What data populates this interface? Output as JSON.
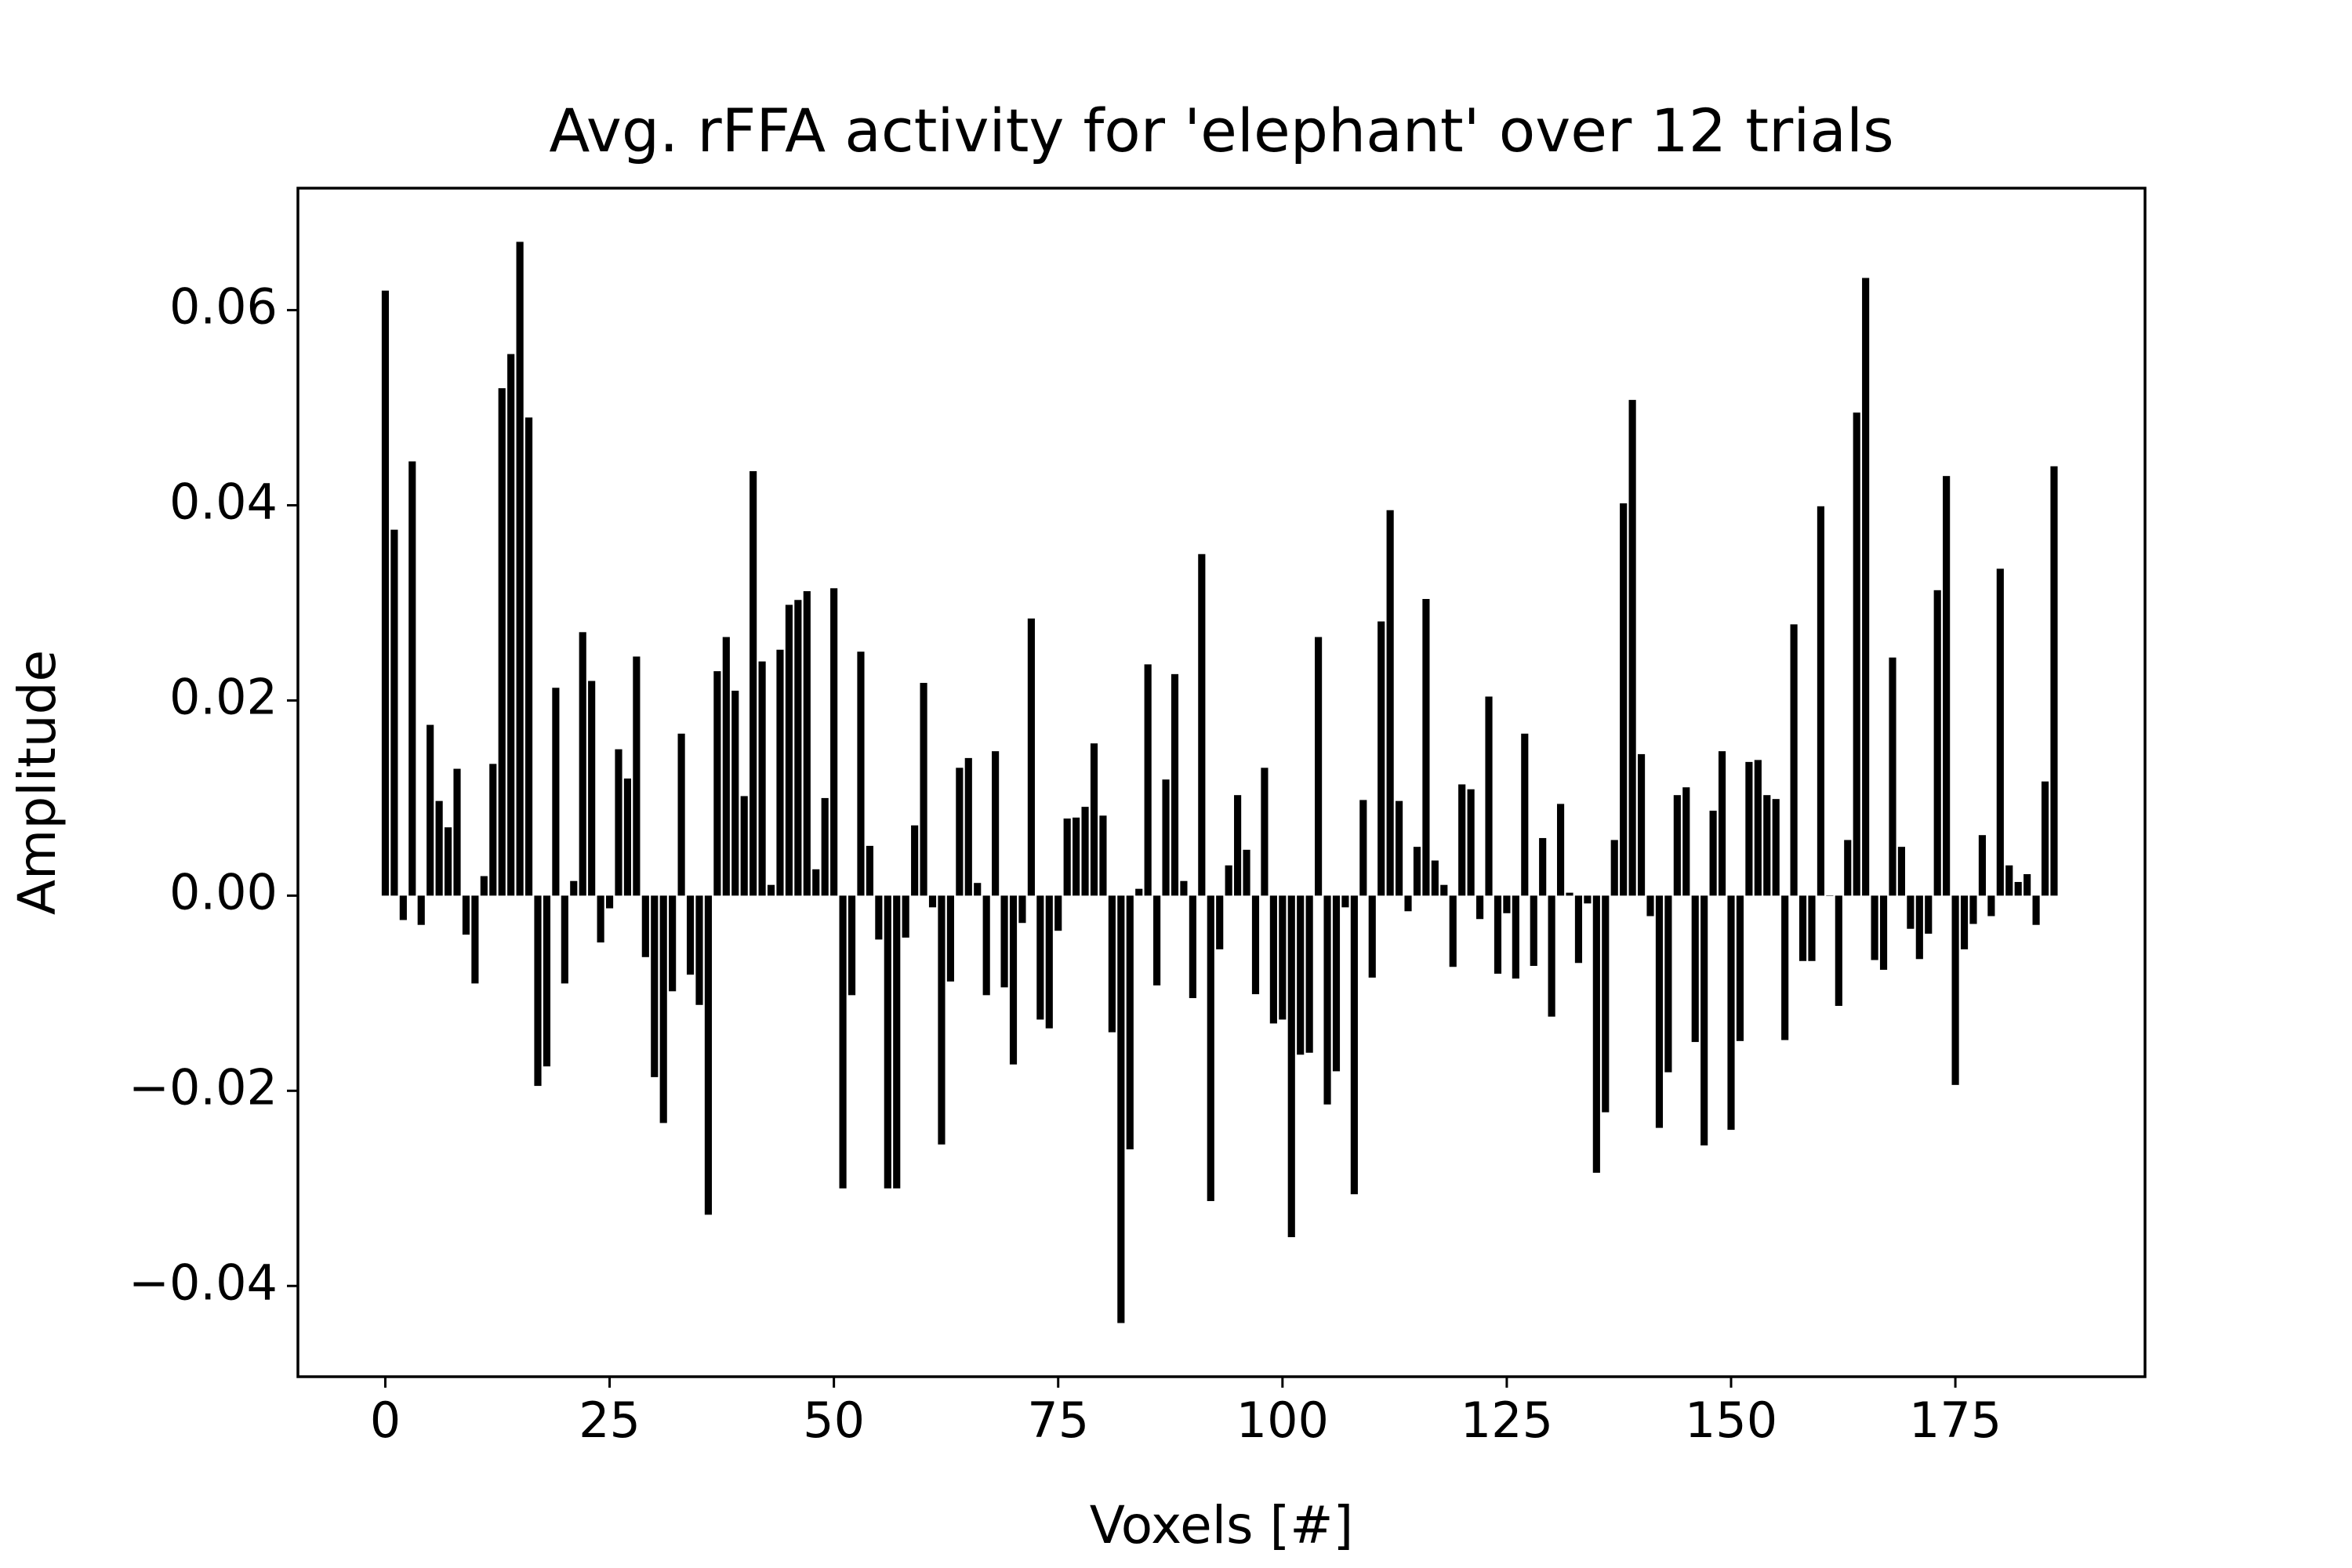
{
  "chart_data": {
    "type": "bar",
    "title": "Avg. rFFA activity for 'elephant' over 12 trials",
    "xlabel": "Voxels [#]",
    "ylabel": "Amplitude",
    "color": "#000000",
    "x": [
      0,
      1,
      2,
      3,
      4,
      5,
      6,
      7,
      8,
      9,
      10,
      11,
      12,
      13,
      14,
      15,
      16,
      17,
      18,
      19,
      20,
      21,
      22,
      23,
      24,
      25,
      26,
      27,
      28,
      29,
      30,
      31,
      32,
      33,
      34,
      35,
      36,
      37,
      38,
      39,
      40,
      41,
      42,
      43,
      44,
      45,
      46,
      47,
      48,
      49,
      50,
      51,
      52,
      53,
      54,
      55,
      56,
      57,
      58,
      59,
      60,
      61,
      62,
      63,
      64,
      65,
      66,
      67,
      68,
      69,
      70,
      71,
      72,
      73,
      74,
      75,
      76,
      77,
      78,
      79,
      80,
      81,
      82,
      83,
      84,
      85,
      86,
      87,
      88,
      89,
      90,
      91,
      92,
      93,
      94,
      95,
      96,
      97,
      98,
      99,
      100,
      101,
      102,
      103,
      104,
      105,
      106,
      107,
      108,
      109,
      110,
      111,
      112,
      113,
      114,
      115,
      116,
      117,
      118,
      119,
      120,
      121,
      122,
      123,
      124,
      125,
      126,
      127,
      128,
      129,
      130,
      131,
      132,
      133,
      134,
      135,
      136,
      137,
      138,
      139,
      140,
      141,
      142,
      143,
      144,
      145,
      146,
      147,
      148,
      149,
      150,
      151,
      152,
      153,
      154,
      155,
      156,
      157,
      158,
      159,
      160,
      161,
      162,
      163,
      164,
      165,
      166,
      167,
      168,
      169,
      170,
      171,
      172,
      173,
      174,
      175,
      176,
      177,
      178,
      179,
      180,
      181,
      182,
      183,
      184,
      185,
      186
    ],
    "values": [
      0.062,
      0.0375,
      -0.0025,
      0.0445,
      -0.003,
      0.0175,
      0.0097,
      0.007,
      0.013,
      -0.004,
      -0.009,
      0.002,
      0.0135,
      0.052,
      0.0555,
      0.067,
      0.049,
      -0.0195,
      -0.0175,
      0.0213,
      -0.009,
      0.0015,
      0.027,
      0.022,
      -0.0048,
      -0.0013,
      0.015,
      0.012,
      0.0245,
      -0.0063,
      -0.0186,
      -0.0233,
      -0.0098,
      0.0166,
      -0.0081,
      -0.0112,
      -0.0327,
      0.023,
      0.0265,
      0.021,
      0.0102,
      0.0435,
      0.024,
      0.0011,
      0.0252,
      0.0298,
      0.0303,
      0.0312,
      0.0027,
      0.01,
      0.0315,
      -0.03,
      -0.0102,
      0.025,
      0.0051,
      -0.0045,
      -0.03,
      -0.03,
      -0.0043,
      0.0072,
      0.0218,
      -0.0012,
      -0.0255,
      -0.0088,
      0.0131,
      0.0141,
      0.0013,
      -0.0102,
      0.0148,
      -0.0094,
      -0.0173,
      -0.0028,
      0.0284,
      -0.0127,
      -0.0136,
      -0.0036,
      0.0079,
      0.008,
      0.0091,
      0.0156,
      0.0082,
      -0.014,
      -0.0438,
      -0.026,
      0.0007,
      0.0237,
      -0.0092,
      0.0119,
      0.0227,
      0.0015,
      -0.0105,
      0.035,
      -0.0313,
      -0.0055,
      0.0031,
      0.0103,
      0.0047,
      -0.0101,
      0.0131,
      -0.0131,
      -0.0127,
      -0.035,
      -0.0163,
      -0.0161,
      0.0265,
      -0.0214,
      -0.018,
      -0.0012,
      -0.0306,
      0.0098,
      -0.0084,
      0.0281,
      0.0395,
      0.0097,
      -0.0016,
      0.005,
      0.0304,
      0.0036,
      0.0011,
      -0.0073,
      0.0114,
      0.0109,
      -0.0024,
      0.0204,
      -0.008,
      -0.0018,
      -0.0085,
      0.0166,
      -0.0072,
      0.0059,
      -0.0124,
      0.0094,
      0.0003,
      -0.0069,
      -0.0008,
      -0.0284,
      -0.0222,
      0.0057,
      0.0402,
      0.0508,
      0.0145,
      -0.0021,
      -0.0238,
      -0.0181,
      0.0103,
      0.0111,
      -0.015,
      -0.0256,
      0.0087,
      0.0148,
      -0.024,
      -0.0149,
      0.0137,
      0.0139,
      0.0103,
      0.0099,
      -0.0148,
      0.0278,
      -0.0067,
      -0.0067,
      0.0399,
      0.0,
      -0.0113,
      0.0057,
      0.0495,
      0.0633,
      -0.0066,
      -0.0076,
      0.0244,
      0.005,
      -0.0034,
      -0.0065,
      -0.0039,
      0.0313,
      0.043,
      -0.0194,
      -0.0055,
      -0.0029,
      0.0062,
      -0.0021,
      0.0335,
      0.0031,
      0.0014,
      0.0022,
      -0.003,
      0.0117,
      0.044
    ],
    "xlim": [
      -9.74,
      196.14
    ],
    "ylim": [
      -0.0493,
      0.0725
    ],
    "xticks": [
      0,
      25,
      50,
      75,
      100,
      125,
      150,
      175
    ],
    "yticks": [
      {
        "value": -0.04,
        "label": "−0.04"
      },
      {
        "value": -0.02,
        "label": "−0.02"
      },
      {
        "value": 0,
        "label": "0.00"
      },
      0.02,
      0.04,
      0.06
    ]
  }
}
